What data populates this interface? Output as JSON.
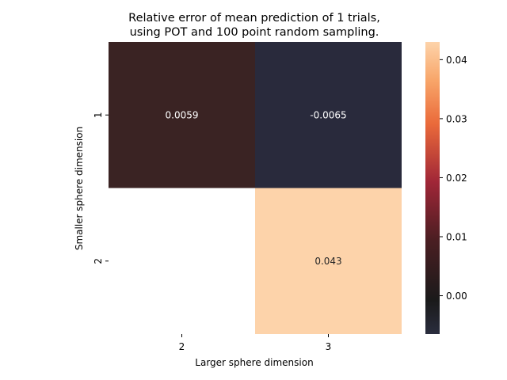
{
  "chart_data": {
    "type": "heatmap",
    "title_lines": [
      "Relative error of mean prediction of 1 trials,",
      "using POT and 100 point random sampling."
    ],
    "xlabel": "Larger sphere dimension",
    "ylabel": "Smaller sphere dimension",
    "x_categories": [
      "2",
      "3"
    ],
    "y_categories": [
      "1",
      "2"
    ],
    "cells": [
      {
        "row": 0,
        "col": 0,
        "value": 0.0059,
        "label": "0.0059"
      },
      {
        "row": 0,
        "col": 1,
        "value": -0.0065,
        "label": "-0.0065"
      },
      {
        "row": 1,
        "col": 0,
        "value": null,
        "label": ""
      },
      {
        "row": 1,
        "col": 1,
        "value": 0.043,
        "label": "0.043"
      }
    ],
    "colorbar": {
      "range": [
        -0.0065,
        0.043
      ],
      "ticks": [
        0.0,
        0.01,
        0.02,
        0.03,
        0.04
      ],
      "tick_labels": [
        "0.00",
        "0.01",
        "0.02",
        "0.03",
        "0.04"
      ],
      "colormap": "icefire-like",
      "center": 0
    },
    "colors": {
      "cell_0_0": "#3a2323",
      "cell_0_1": "#292a3c",
      "cell_1_1": "#fdd3aa",
      "text_on_dark": "#ffffff",
      "text_on_light": "#262626"
    }
  }
}
